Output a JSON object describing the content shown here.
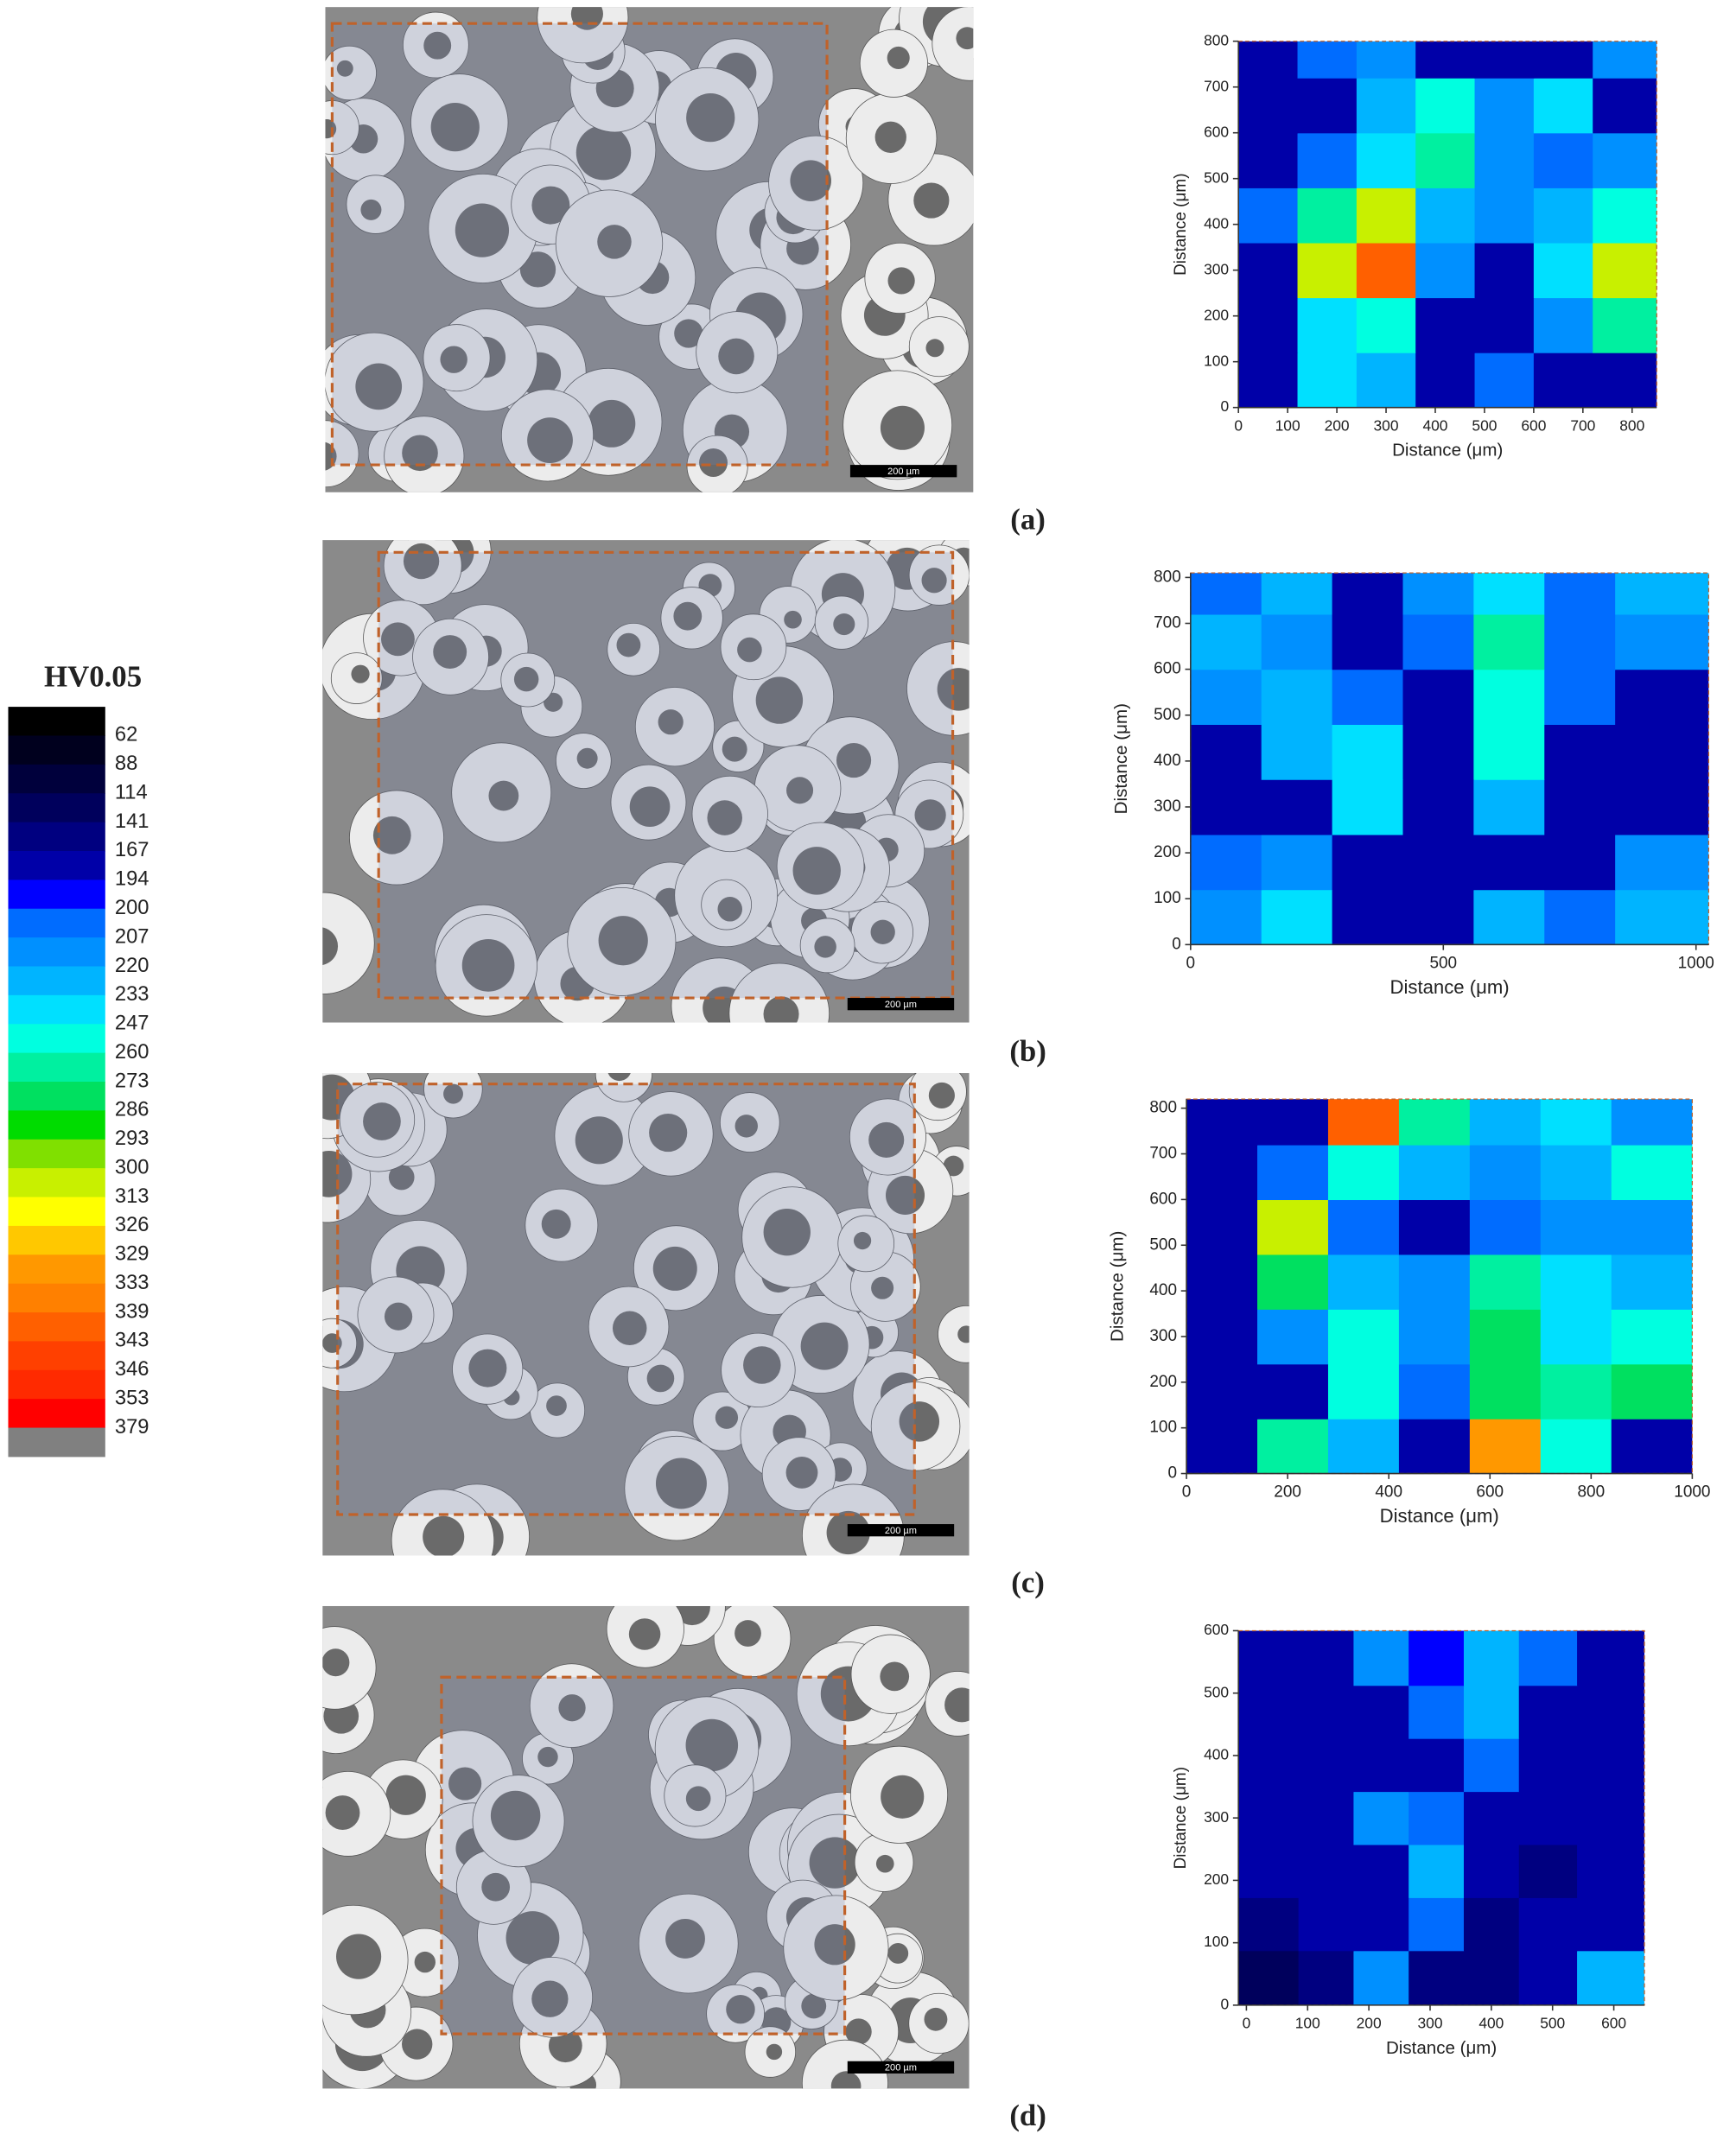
{
  "chart_data": [
    {
      "type": "colorbar",
      "title": "HV0.05",
      "levels": [
        62,
        88,
        114,
        141,
        167,
        194,
        200,
        207,
        220,
        233,
        247,
        260,
        273,
        286,
        293,
        300,
        313,
        326,
        329,
        333,
        339,
        343,
        346,
        353,
        379
      ],
      "colors": [
        "#000000",
        "#00001e",
        "#00003c",
        "#00005c",
        "#000080",
        "#0000a8",
        "#0000ff",
        "#006cff",
        "#0090ff",
        "#00b4ff",
        "#00e0ff",
        "#00ffe0",
        "#00f0a0",
        "#00e060",
        "#00dc00",
        "#80e000",
        "#c8f000",
        "#ffff00",
        "#ffc800",
        "#ff9800",
        "#ff8000",
        "#ff6000",
        "#ff4000",
        "#ff2a00",
        "#ff0000",
        "#808080"
      ]
    },
    {
      "type": "contour",
      "panel_label": "(a)",
      "xlabel": "Distance (μm)",
      "ylabel": "Distance (μm)",
      "xlim": [
        0,
        850
      ],
      "ylim": [
        0,
        800
      ],
      "xticks": [
        0,
        100,
        200,
        300,
        400,
        500,
        600,
        700,
        800
      ],
      "yticks": [
        0,
        100,
        200,
        300,
        400,
        500,
        600,
        700,
        800
      ],
      "x": [
        60,
        180,
        300,
        420,
        540,
        660,
        780
      ],
      "y": [
        60,
        180,
        300,
        420,
        540,
        660,
        780
      ],
      "z": [
        [
          180,
          240,
          230,
          180,
          200,
          180,
          175
        ],
        [
          175,
          235,
          250,
          190,
          185,
          210,
          260
        ],
        [
          180,
          300,
          340,
          215,
          190,
          240,
          300
        ],
        [
          200,
          260,
          300,
          230,
          210,
          220,
          250
        ],
        [
          175,
          200,
          240,
          270,
          210,
          200,
          210
        ],
        [
          175,
          185,
          220,
          250,
          215,
          240,
          180
        ],
        [
          180,
          200,
          215,
          190,
          175,
          190,
          210
        ]
      ]
    },
    {
      "type": "contour",
      "panel_label": "(b)",
      "xlabel": "Distance (μm)",
      "ylabel": "Distance (μm)",
      "xlim": [
        0,
        1025
      ],
      "ylim": [
        0,
        810
      ],
      "xticks": [
        0,
        500,
        1000
      ],
      "yticks": [
        0,
        100,
        200,
        300,
        400,
        500,
        600,
        700,
        800
      ],
      "x": [
        70,
        210,
        350,
        490,
        630,
        770,
        910
      ],
      "y": [
        60,
        180,
        300,
        420,
        540,
        660,
        780
      ],
      "z": [
        [
          215,
          240,
          180,
          175,
          220,
          200,
          230
        ],
        [
          200,
          215,
          175,
          170,
          175,
          175,
          210
        ],
        [
          180,
          190,
          240,
          175,
          230,
          180,
          175
        ],
        [
          190,
          220,
          245,
          180,
          250,
          190,
          180
        ],
        [
          210,
          220,
          200,
          185,
          255,
          205,
          185
        ],
        [
          220,
          215,
          190,
          205,
          270,
          200,
          215
        ],
        [
          200,
          225,
          185,
          210,
          240,
          205,
          230
        ]
      ]
    },
    {
      "type": "contour",
      "panel_label": "(c)",
      "xlabel": "Distance (μm)",
      "ylabel": "Distance (μm)",
      "xlim": [
        0,
        1000
      ],
      "ylim": [
        0,
        820
      ],
      "xticks": [
        0,
        200,
        400,
        600,
        800,
        1000
      ],
      "yticks": [
        0,
        100,
        200,
        300,
        400,
        500,
        600,
        700,
        800
      ],
      "x": [
        70,
        210,
        350,
        490,
        630,
        770,
        910
      ],
      "y": [
        60,
        180,
        300,
        420,
        540,
        660,
        780
      ],
      "z": [
        [
          175,
          260,
          230,
          170,
          330,
          250,
          190
        ],
        [
          170,
          190,
          250,
          200,
          280,
          260,
          280
        ],
        [
          175,
          210,
          255,
          215,
          275,
          245,
          250
        ],
        [
          180,
          280,
          220,
          215,
          265,
          240,
          230
        ],
        [
          175,
          300,
          200,
          180,
          200,
          210,
          215
        ],
        [
          170,
          200,
          250,
          230,
          210,
          225,
          250
        ],
        [
          175,
          190,
          340,
          260,
          225,
          240,
          215
        ]
      ]
    },
    {
      "type": "contour",
      "panel_label": "(d)",
      "xlabel": "Distance (μm)",
      "ylabel": "Distance (μm)",
      "xlim": [
        -13,
        650
      ],
      "ylim": [
        0,
        600
      ],
      "xticks": [
        0,
        100,
        200,
        300,
        400,
        500,
        600
      ],
      "yticks": [
        0,
        100,
        200,
        300,
        400,
        500,
        600
      ],
      "x": [
        40,
        130,
        220,
        310,
        400,
        490,
        590
      ],
      "y": [
        45,
        130,
        215,
        300,
        385,
        470,
        555
      ],
      "z": [
        [
          140,
          160,
          210,
          150,
          165,
          175,
          230
        ],
        [
          150,
          170,
          175,
          200,
          165,
          170,
          185
        ],
        [
          170,
          175,
          185,
          230,
          170,
          150,
          175
        ],
        [
          175,
          185,
          215,
          205,
          175,
          180,
          175
        ],
        [
          175,
          180,
          175,
          190,
          200,
          185,
          180
        ],
        [
          180,
          175,
          180,
          200,
          230,
          190,
          180
        ],
        [
          175,
          190,
          210,
          195,
          225,
          200,
          185
        ]
      ]
    }
  ],
  "micrographs": [
    {
      "scale_bar": "200 µm"
    },
    {
      "scale_bar": "200 µm"
    },
    {
      "scale_bar": "200 µm"
    },
    {
      "scale_bar": "200 µm"
    }
  ]
}
